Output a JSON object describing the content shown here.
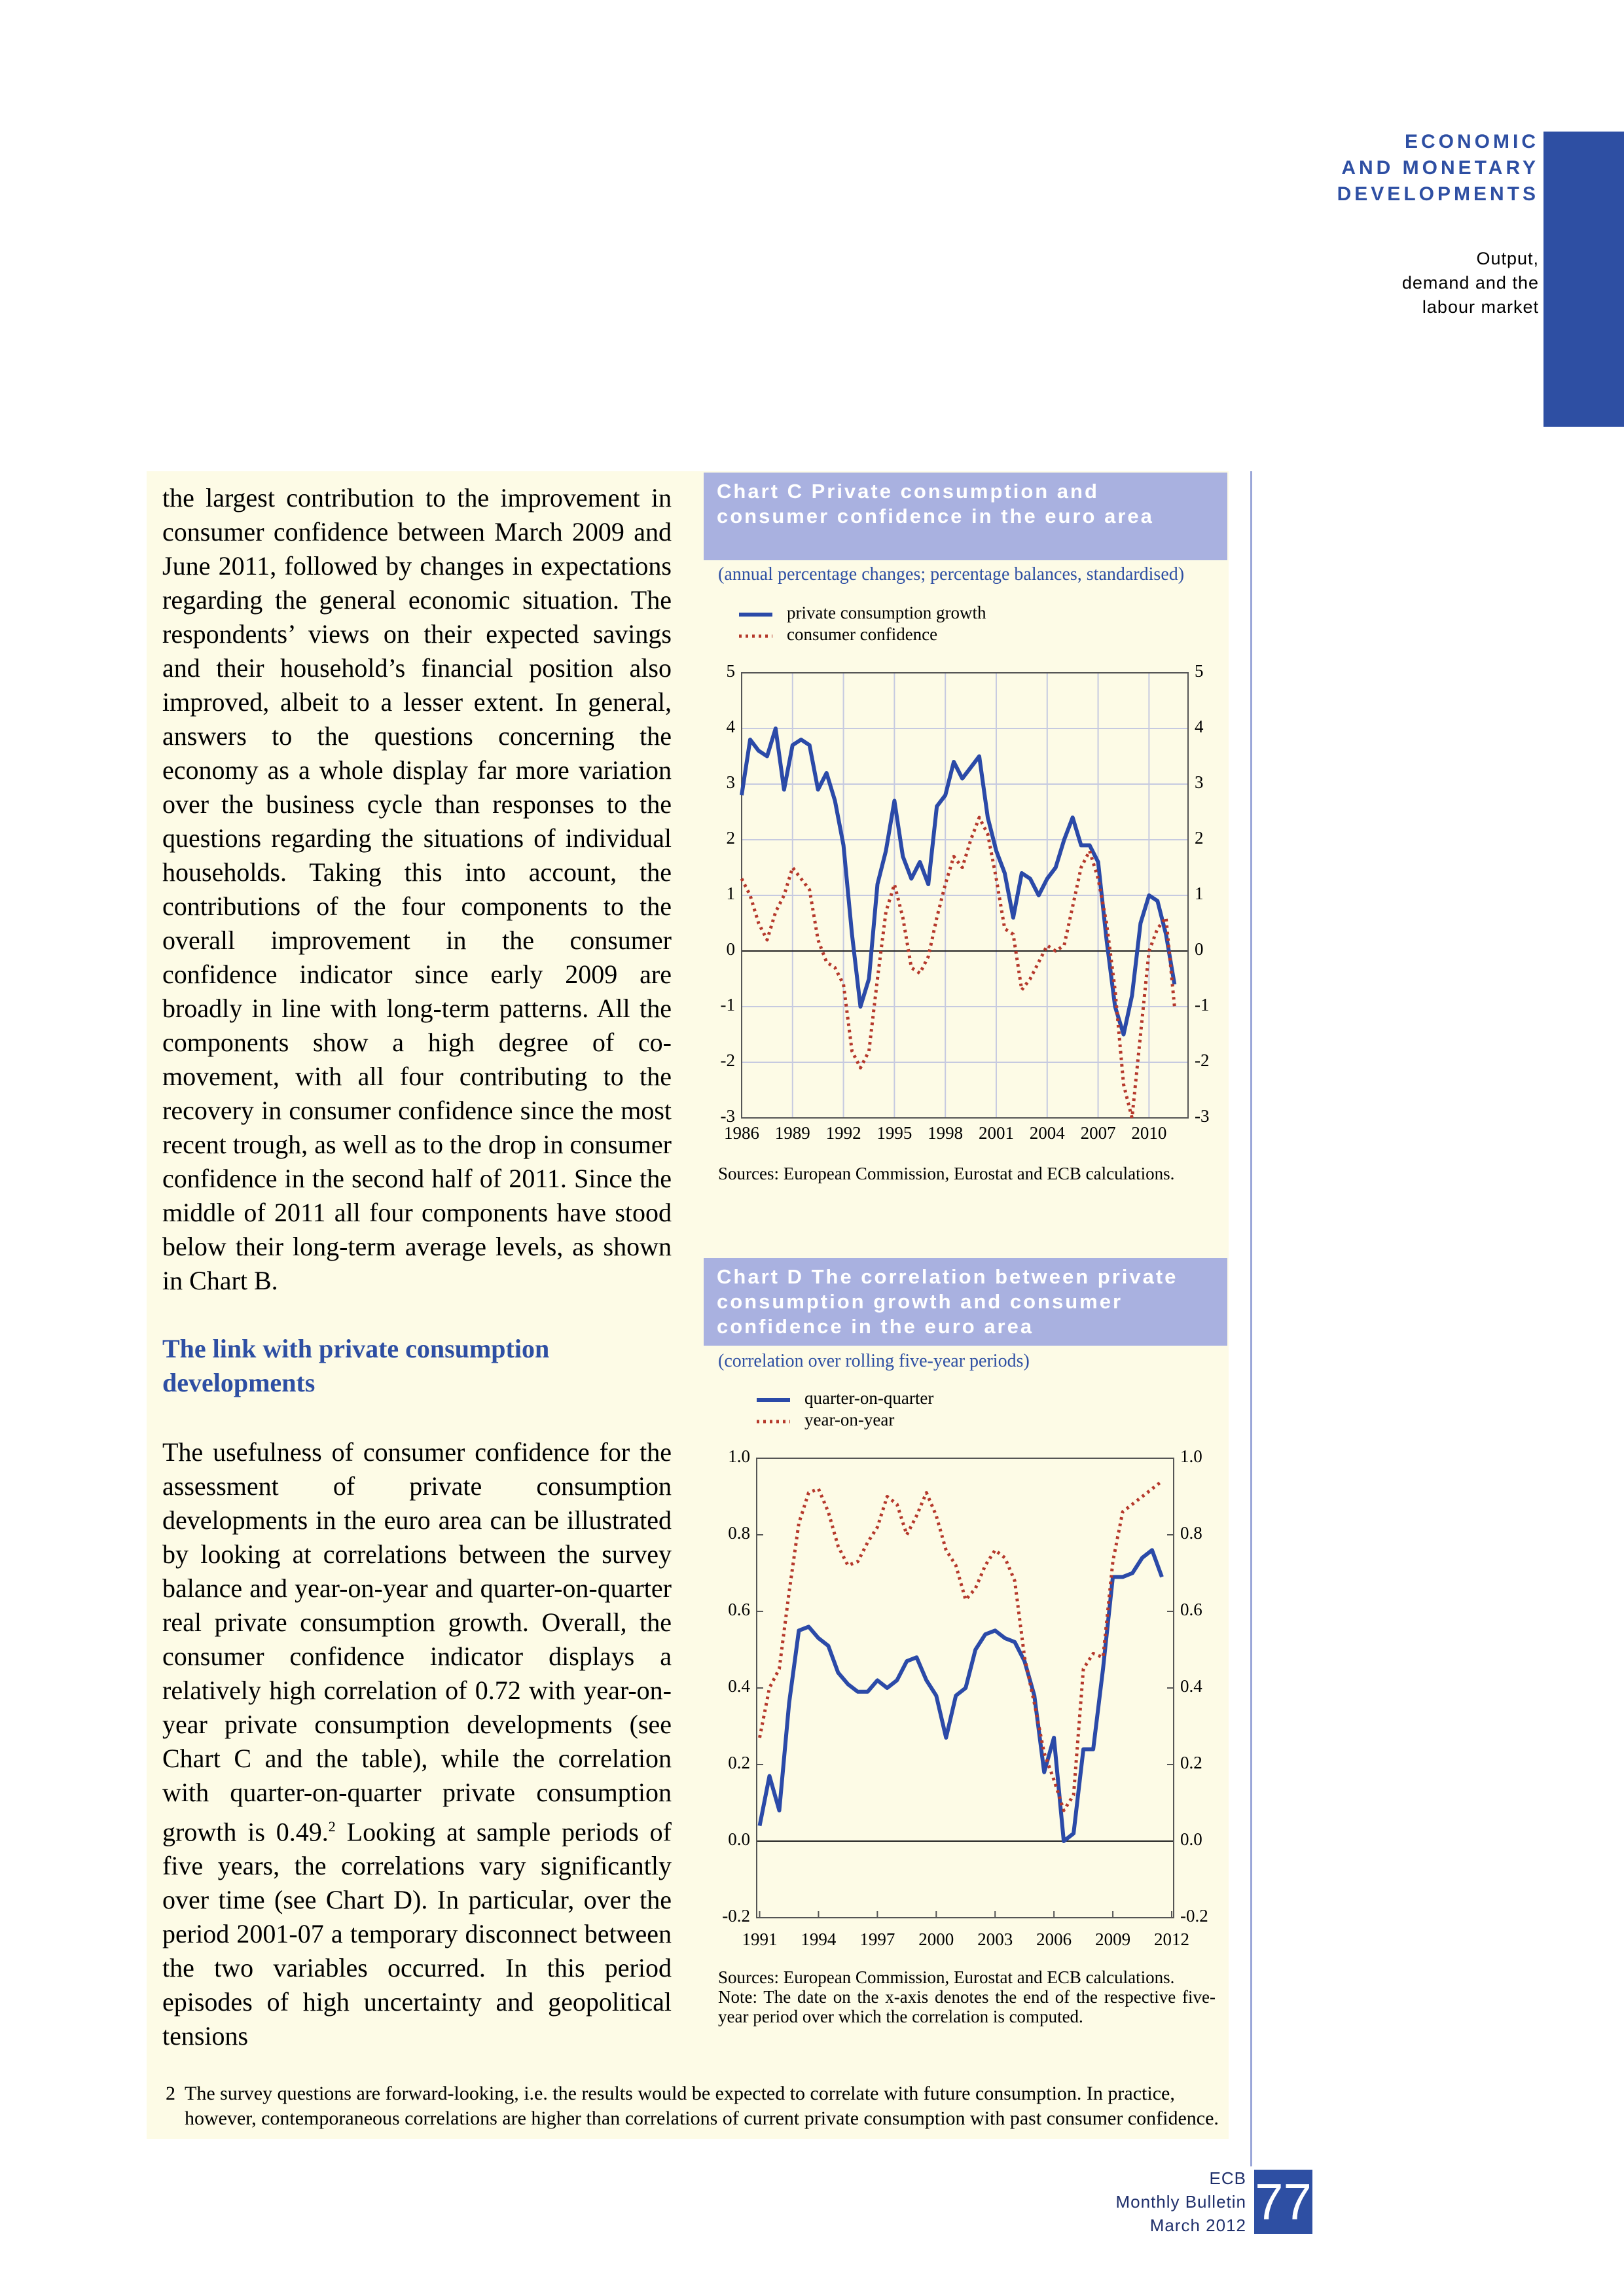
{
  "header": {
    "section": [
      "ECONOMIC",
      "AND MONETARY",
      "DEVELOPMENTS"
    ],
    "subsection": [
      "Output,",
      "demand and the",
      "labour market"
    ]
  },
  "body": {
    "paragraph_1": "the largest contribution to the improvement in consumer confidence between March 2009 and June 2011, followed by changes in expectations regarding the general economic situation. The respondents’ views on their expected savings and their household’s financial position also improved, albeit to a lesser extent. In general, answers to the questions concerning the economy as a whole display far more variation over the business cycle than responses to the questions regarding the situations of individual households. Taking this into account, the contributions of the four components to the overall improvement in the consumer confidence indicator since early 2009 are broadly in line with long-term patterns. All the components show a high degree of co-movement, with all four contributing to the recovery in consumer confidence since the most recent trough, as well as to the drop in consumer confidence in the second half of 2011. Since the middle of 2011 all four components have stood below their long-term average levels, as shown in Chart B.",
    "heading": "The link with private consumption developments",
    "paragraph_2": "The usefulness of consumer confidence for the assessment of private consumption developments in the euro area can be illustrated by looking at correlations between the survey balance and year-on-year and quarter-on-quarter real private consumption growth. Overall, the consumer confidence indicator displays a relatively high correlation of 0.72 with year-on-year private consumption developments (see Chart C and the table), while the correlation with quarter-on-quarter private consumption growth is 0.49.",
    "footnote_ref": "2",
    "paragraph_2_cont": " Looking at sample periods of five years, the correlations vary significantly over time (see Chart D). In particular, over the period 2001-07 a temporary disconnect between the two variables occurred. In this period episodes of high uncertainty and geopolitical tensions"
  },
  "chart_data": [
    {
      "type": "line",
      "label": "Chart C",
      "title": "Private consumption and consumer confidence in the euro area",
      "subtitle": "(annual percentage changes; percentage balances, standardised)",
      "x": [
        1986,
        1986.5,
        1987,
        1987.5,
        1988,
        1988.5,
        1989,
        1989.5,
        1990,
        1990.5,
        1991,
        1991.5,
        1992,
        1992.5,
        1993,
        1993.5,
        1994,
        1994.5,
        1995,
        1995.5,
        1996,
        1996.5,
        1997,
        1997.5,
        1998,
        1998.5,
        1999,
        1999.5,
        2000,
        2000.5,
        2001,
        2001.5,
        2002,
        2002.5,
        2003,
        2003.5,
        2004,
        2004.5,
        2005,
        2005.5,
        2006,
        2006.5,
        2007,
        2007.5,
        2008,
        2008.5,
        2009,
        2009.5,
        2010,
        2010.5,
        2011,
        2011.5
      ],
      "series": [
        {
          "name": "private consumption growth",
          "color": "#2b4aa8",
          "line_style": "solid",
          "values": [
            2.8,
            3.8,
            3.6,
            3.5,
            4.0,
            2.9,
            3.7,
            3.8,
            3.7,
            2.9,
            3.2,
            2.7,
            1.9,
            0.3,
            -1.0,
            -0.5,
            1.2,
            1.8,
            2.7,
            1.7,
            1.3,
            1.6,
            1.2,
            2.6,
            2.8,
            3.4,
            3.1,
            3.3,
            3.5,
            2.4,
            1.8,
            1.4,
            0.6,
            1.4,
            1.3,
            1.0,
            1.3,
            1.5,
            2.0,
            2.4,
            1.9,
            1.9,
            1.6,
            0.2,
            -1.0,
            -1.5,
            -0.8,
            0.5,
            1.0,
            0.9,
            0.3,
            -0.6
          ]
        },
        {
          "name": "consumer confidence",
          "color": "#b5382b",
          "line_style": "dotted",
          "values": [
            1.3,
            1.0,
            0.5,
            0.2,
            0.7,
            1.0,
            1.5,
            1.3,
            1.1,
            0.2,
            -0.2,
            -0.3,
            -0.6,
            -1.8,
            -2.1,
            -1.8,
            -0.5,
            0.7,
            1.2,
            0.6,
            -0.3,
            -0.4,
            -0.1,
            0.6,
            1.2,
            1.7,
            1.5,
            2.0,
            2.4,
            2.1,
            1.3,
            0.4,
            0.3,
            -0.7,
            -0.5,
            -0.2,
            0.1,
            0.0,
            0.1,
            0.8,
            1.5,
            1.8,
            1.3,
            0.5,
            -0.7,
            -2.4,
            -3.0,
            -1.5,
            0.0,
            0.4,
            0.6,
            -1.0
          ]
        }
      ],
      "xlim": [
        1986,
        2012.3
      ],
      "xticks": [
        1986,
        1989,
        1992,
        1995,
        1998,
        2001,
        2004,
        2007,
        2010
      ],
      "ylim": [
        -3,
        5
      ],
      "yticks": [
        -3,
        -2,
        -1,
        0,
        1,
        2,
        3,
        4,
        5
      ],
      "grid": true,
      "sources": "Sources: European Commission, Eurostat and ECB calculations."
    },
    {
      "type": "line",
      "label": "Chart D",
      "title": "The correlation between private consumption growth and consumer confidence in the euro area",
      "subtitle": "(correlation over rolling five-year periods)",
      "x": [
        1991,
        1991.5,
        1992,
        1992.5,
        1993,
        1993.5,
        1994,
        1994.5,
        1995,
        1995.5,
        1996,
        1996.5,
        1997,
        1997.5,
        1998,
        1998.5,
        1999,
        1999.5,
        2000,
        2000.5,
        2001,
        2001.5,
        2002,
        2002.5,
        2003,
        2003.5,
        2004,
        2004.5,
        2005,
        2005.5,
        2006,
        2006.5,
        2007,
        2007.5,
        2008,
        2008.5,
        2009,
        2009.5,
        2010,
        2010.5,
        2011,
        2011.5
      ],
      "series": [
        {
          "name": "quarter-on-quarter",
          "color": "#2b4aa8",
          "line_style": "solid",
          "values": [
            0.04,
            0.17,
            0.08,
            0.36,
            0.55,
            0.56,
            0.53,
            0.51,
            0.44,
            0.41,
            0.39,
            0.39,
            0.42,
            0.4,
            0.42,
            0.47,
            0.48,
            0.42,
            0.38,
            0.27,
            0.38,
            0.4,
            0.5,
            0.54,
            0.55,
            0.53,
            0.52,
            0.47,
            0.38,
            0.18,
            0.27,
            0,
            0.02,
            0.24,
            0.24,
            0.45,
            0.69,
            0.69,
            0.7,
            0.74,
            0.76,
            0.69
          ]
        },
        {
          "name": "year-on-year",
          "color": "#b5382b",
          "line_style": "dotted",
          "values": [
            0.27,
            0.4,
            0.45,
            0.65,
            0.83,
            0.91,
            0.92,
            0.86,
            0.77,
            0.72,
            0.73,
            0.78,
            0.82,
            0.9,
            0.88,
            0.8,
            0.85,
            0.91,
            0.85,
            0.76,
            0.72,
            0.63,
            0.66,
            0.72,
            0.76,
            0.74,
            0.68,
            0.48,
            0.36,
            0.23,
            0.16,
            0.08,
            0.12,
            0.45,
            0.49,
            0.48,
            0.73,
            0.86,
            0.88,
            0.9,
            0.92,
            0.94
          ]
        }
      ],
      "xlim": [
        1990.85,
        2012.1
      ],
      "xticks": [
        1991,
        1994,
        1997,
        2000,
        2003,
        2006,
        2009,
        2012
      ],
      "ylim": [
        -0.2,
        1.0
      ],
      "yticks": [
        -0.2,
        {
          "value": 0,
          "label": "0.0"
        },
        0.2,
        0.4,
        0.6,
        0.8,
        {
          "value": 1,
          "label": "1.0"
        }
      ],
      "grid": false,
      "sources": "Sources: European Commission, Eurostat and ECB calculations.",
      "note": "Note: The date on the x-axis denotes the end of the respective five-year period over which the correlation is computed."
    }
  ],
  "footnote": {
    "number": "2",
    "text": "The survey questions are forward-looking, i.e. the results would be expected to correlate with future consumption. In practice, however, contemporaneous correlations are higher than correlations of current private consumption with past consumer confidence."
  },
  "footer": {
    "publisher": "ECB",
    "title": "Monthly Bulletin",
    "issue": "March 2012",
    "page": "77"
  }
}
